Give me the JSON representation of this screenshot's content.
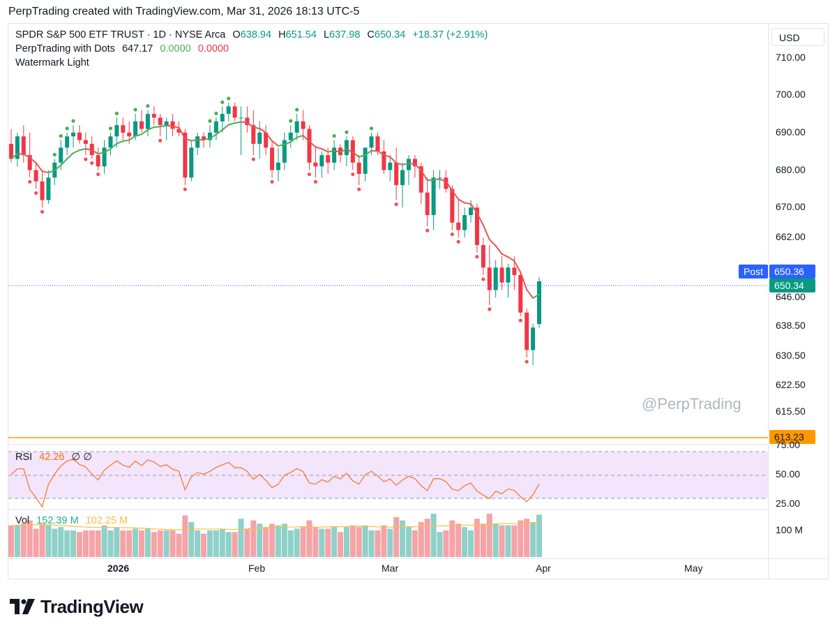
{
  "caption": "PerpTrading created with TradingView.com, Mar 31, 2026 18:13 UTC-5",
  "legend": {
    "symbol": "SPDR S&P 500 ETF TRUST · 1D · NYSE Arca",
    "o_label": "O",
    "o_value": "638.94",
    "h_label": "H",
    "h_value": "651.54",
    "l_label": "L",
    "l_value": "637.98",
    "c_label": "C",
    "c_value": "650.34",
    "change": "+18.37 (+2.91%)",
    "indicator_name": "PerpTrading with Dots",
    "indicator_value": "647.17",
    "indicator_v2": "0.0000",
    "indicator_v3": "0.0000",
    "watermark_name": "Watermark Light"
  },
  "currency": "USD",
  "watermark": "@PerpTrading",
  "post_label": "Post",
  "post_price": "650.36",
  "last_price": "650.34",
  "hline_price": "613.23",
  "rsi": {
    "label": "RSI",
    "value": "42.26",
    "icons": "∅ ∅"
  },
  "vol": {
    "label": "Vol",
    "value": "152.39 M",
    "ma": "102.25 M"
  },
  "brand": "TradingView",
  "colors": {
    "up": "#089981",
    "down": "#f23645",
    "ema_up": "#4caf50",
    "ema_down": "#ef5350",
    "rsi_line": "#f57c32",
    "rsi_band": "#f3e5fc",
    "vol_up": "#8fd0c8",
    "vol_down": "#f5a3a7",
    "vol_ma": "#f5c044",
    "hline": "#ff9800",
    "post": "#2962ff",
    "last": "#089981"
  },
  "chart_data": {
    "type": "candlestick",
    "title": "SPDR S&P 500 ETF TRUST · 1D · NYSE Arca",
    "price_axis_ticks": [
      "710.00",
      "700.00",
      "690.00",
      "680.00",
      "670.00",
      "662.00",
      "646.00",
      "638.50",
      "630.50",
      "622.50",
      "615.50"
    ],
    "time_axis_ticks": [
      "2026",
      "Feb",
      "Mar",
      "Apr",
      "May"
    ],
    "rsi_axis_ticks": [
      "75.00",
      "50.00",
      "25.00"
    ],
    "vol_axis_ticks": [
      "100 M"
    ],
    "candles": [
      [
        687,
        691,
        682,
        683
      ],
      [
        683,
        690,
        681,
        689
      ],
      [
        689,
        692,
        682,
        684
      ],
      [
        684,
        690,
        678,
        680
      ],
      [
        680,
        682,
        675,
        677
      ],
      [
        677,
        680,
        670,
        672
      ],
      [
        672,
        680,
        671,
        678
      ],
      [
        678,
        683,
        676,
        682
      ],
      [
        682,
        688,
        680,
        686
      ],
      [
        686,
        690,
        684,
        689
      ],
      [
        689,
        692,
        686,
        690
      ],
      [
        690,
        692,
        687,
        688
      ],
      [
        688,
        690,
        684,
        687
      ],
      [
        687,
        689,
        683,
        684
      ],
      [
        684,
        686,
        680,
        681
      ],
      [
        681,
        688,
        679,
        686
      ],
      [
        686,
        690,
        684,
        689
      ],
      [
        689,
        694,
        686,
        692
      ],
      [
        692,
        694,
        688,
        690
      ],
      [
        690,
        693,
        687,
        689
      ],
      [
        689,
        695,
        688,
        693
      ],
      [
        693,
        696,
        690,
        691
      ],
      [
        691,
        696,
        689,
        695
      ],
      [
        695,
        697,
        692,
        694
      ],
      [
        694,
        695,
        689,
        692
      ],
      [
        692,
        694,
        688,
        693
      ],
      [
        693,
        695,
        689,
        691
      ],
      [
        691,
        693,
        689,
        690
      ],
      [
        690,
        691,
        676,
        678
      ],
      [
        678,
        688,
        677,
        686
      ],
      [
        686,
        690,
        684,
        689
      ],
      [
        689,
        690,
        686,
        688
      ],
      [
        688,
        692,
        686,
        690
      ],
      [
        690,
        694,
        688,
        693
      ],
      [
        693,
        697,
        690,
        695
      ],
      [
        695,
        698,
        693,
        697
      ],
      [
        697,
        698,
        693,
        694
      ],
      [
        694,
        697,
        684,
        694
      ],
      [
        694,
        697,
        690,
        692
      ],
      [
        692,
        696,
        684,
        687
      ],
      [
        687,
        693,
        683,
        690
      ],
      [
        690,
        692,
        684,
        686
      ],
      [
        686,
        688,
        678,
        680
      ],
      [
        680,
        686,
        677,
        682
      ],
      [
        682,
        690,
        680,
        688
      ],
      [
        688,
        692,
        686,
        690
      ],
      [
        690,
        695,
        688,
        693
      ],
      [
        693,
        696,
        688,
        691
      ],
      [
        691,
        692,
        680,
        682
      ],
      [
        682,
        686,
        678,
        681
      ],
      [
        681,
        685,
        678,
        684
      ],
      [
        684,
        686,
        679,
        682
      ],
      [
        682,
        688,
        680,
        686
      ],
      [
        686,
        687,
        682,
        684
      ],
      [
        684,
        689,
        681,
        688
      ],
      [
        688,
        689,
        680,
        682
      ],
      [
        682,
        684,
        676,
        679
      ],
      [
        679,
        686,
        677,
        686
      ],
      [
        686,
        690,
        684,
        689
      ],
      [
        689,
        690,
        684,
        685
      ],
      [
        685,
        688,
        679,
        680
      ],
      [
        680,
        684,
        677,
        682
      ],
      [
        682,
        686,
        672,
        676
      ],
      [
        676,
        682,
        670,
        680
      ],
      [
        680,
        684,
        676,
        683
      ],
      [
        683,
        684,
        678,
        681
      ],
      [
        681,
        682,
        671,
        674
      ],
      [
        674,
        678,
        665,
        668
      ],
      [
        668,
        680,
        664,
        678
      ],
      [
        678,
        680,
        675,
        678
      ],
      [
        678,
        680,
        674,
        675
      ],
      [
        675,
        676,
        664,
        666
      ],
      [
        666,
        672,
        662,
        664
      ],
      [
        664,
        670,
        662,
        668
      ],
      [
        668,
        672,
        666,
        670
      ],
      [
        670,
        671,
        658,
        660
      ],
      [
        660,
        662,
        652,
        654
      ],
      [
        654,
        660,
        644,
        648
      ],
      [
        648,
        656,
        646,
        654
      ],
      [
        654,
        657,
        648,
        650
      ],
      [
        650,
        655,
        646,
        654
      ],
      [
        654,
        657,
        648,
        652
      ],
      [
        652,
        653,
        641,
        642
      ],
      [
        642,
        643,
        630,
        632
      ],
      [
        632,
        639,
        628,
        638
      ],
      [
        638.94,
        651.54,
        637.98,
        650.34
      ]
    ],
    "last": {
      "open": 638.94,
      "high": 651.54,
      "low": 637.98,
      "close": 650.34,
      "change": 18.37,
      "change_pct": 2.91
    }
  }
}
